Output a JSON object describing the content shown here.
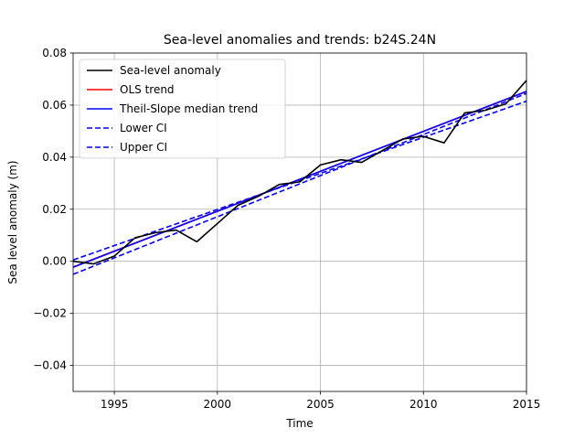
{
  "chart_data": {
    "type": "line",
    "title": "Sea-level anomalies and trends: b24S.24N",
    "xlabel": "Time",
    "ylabel": "Sea level anomaly (m)",
    "xlim": [
      1993,
      2015
    ],
    "ylim": [
      -0.05,
      0.08
    ],
    "xticks": [
      1995,
      2000,
      2005,
      2010,
      2015
    ],
    "xtick_labels": [
      "1995",
      "2000",
      "2005",
      "2010",
      "2015"
    ],
    "yticks": [
      -0.04,
      -0.02,
      0.0,
      0.02,
      0.04,
      0.06,
      0.08
    ],
    "ytick_labels": [
      "−0.04",
      "−0.02",
      "0.00",
      "0.02",
      "0.04",
      "0.06",
      "0.08"
    ],
    "grid": true,
    "legend_position": "upper-left",
    "series": [
      {
        "name": "Sea-level anomaly",
        "color": "#000000",
        "style": "solid",
        "x": [
          1993,
          1994,
          1995,
          1996,
          1997,
          1998,
          1999,
          2000,
          2001,
          2002,
          2003,
          2004,
          2005,
          2006,
          2007,
          2008,
          2009,
          2010,
          2011,
          2012,
          2013,
          2014,
          2015
        ],
        "y": [
          0.0,
          -0.001,
          0.002,
          0.009,
          0.011,
          0.012,
          0.0075,
          0.0145,
          0.0215,
          0.025,
          0.0295,
          0.0305,
          0.037,
          0.039,
          0.038,
          0.0425,
          0.047,
          0.048,
          0.0455,
          0.057,
          0.058,
          0.0605,
          0.0695
        ]
      },
      {
        "name": "OLS trend",
        "color": "#ff0000",
        "style": "solid",
        "x": [
          1993,
          2015
        ],
        "y": [
          -0.0022,
          0.0652
        ]
      },
      {
        "name": "Theil-Slope median trend",
        "color": "#0000ff",
        "style": "solid",
        "x": [
          1993,
          2015
        ],
        "y": [
          -0.0023,
          0.0653
        ]
      },
      {
        "name": "Lower CI",
        "color": "#0000ff",
        "style": "dashed",
        "x": [
          1993,
          2015
        ],
        "y": [
          -0.005,
          0.0645
        ]
      },
      {
        "name": "Upper CI",
        "color": "#0000ff",
        "style": "dashed",
        "x": [
          1993,
          2015
        ],
        "y": [
          0.0005,
          0.0615
        ]
      }
    ]
  }
}
